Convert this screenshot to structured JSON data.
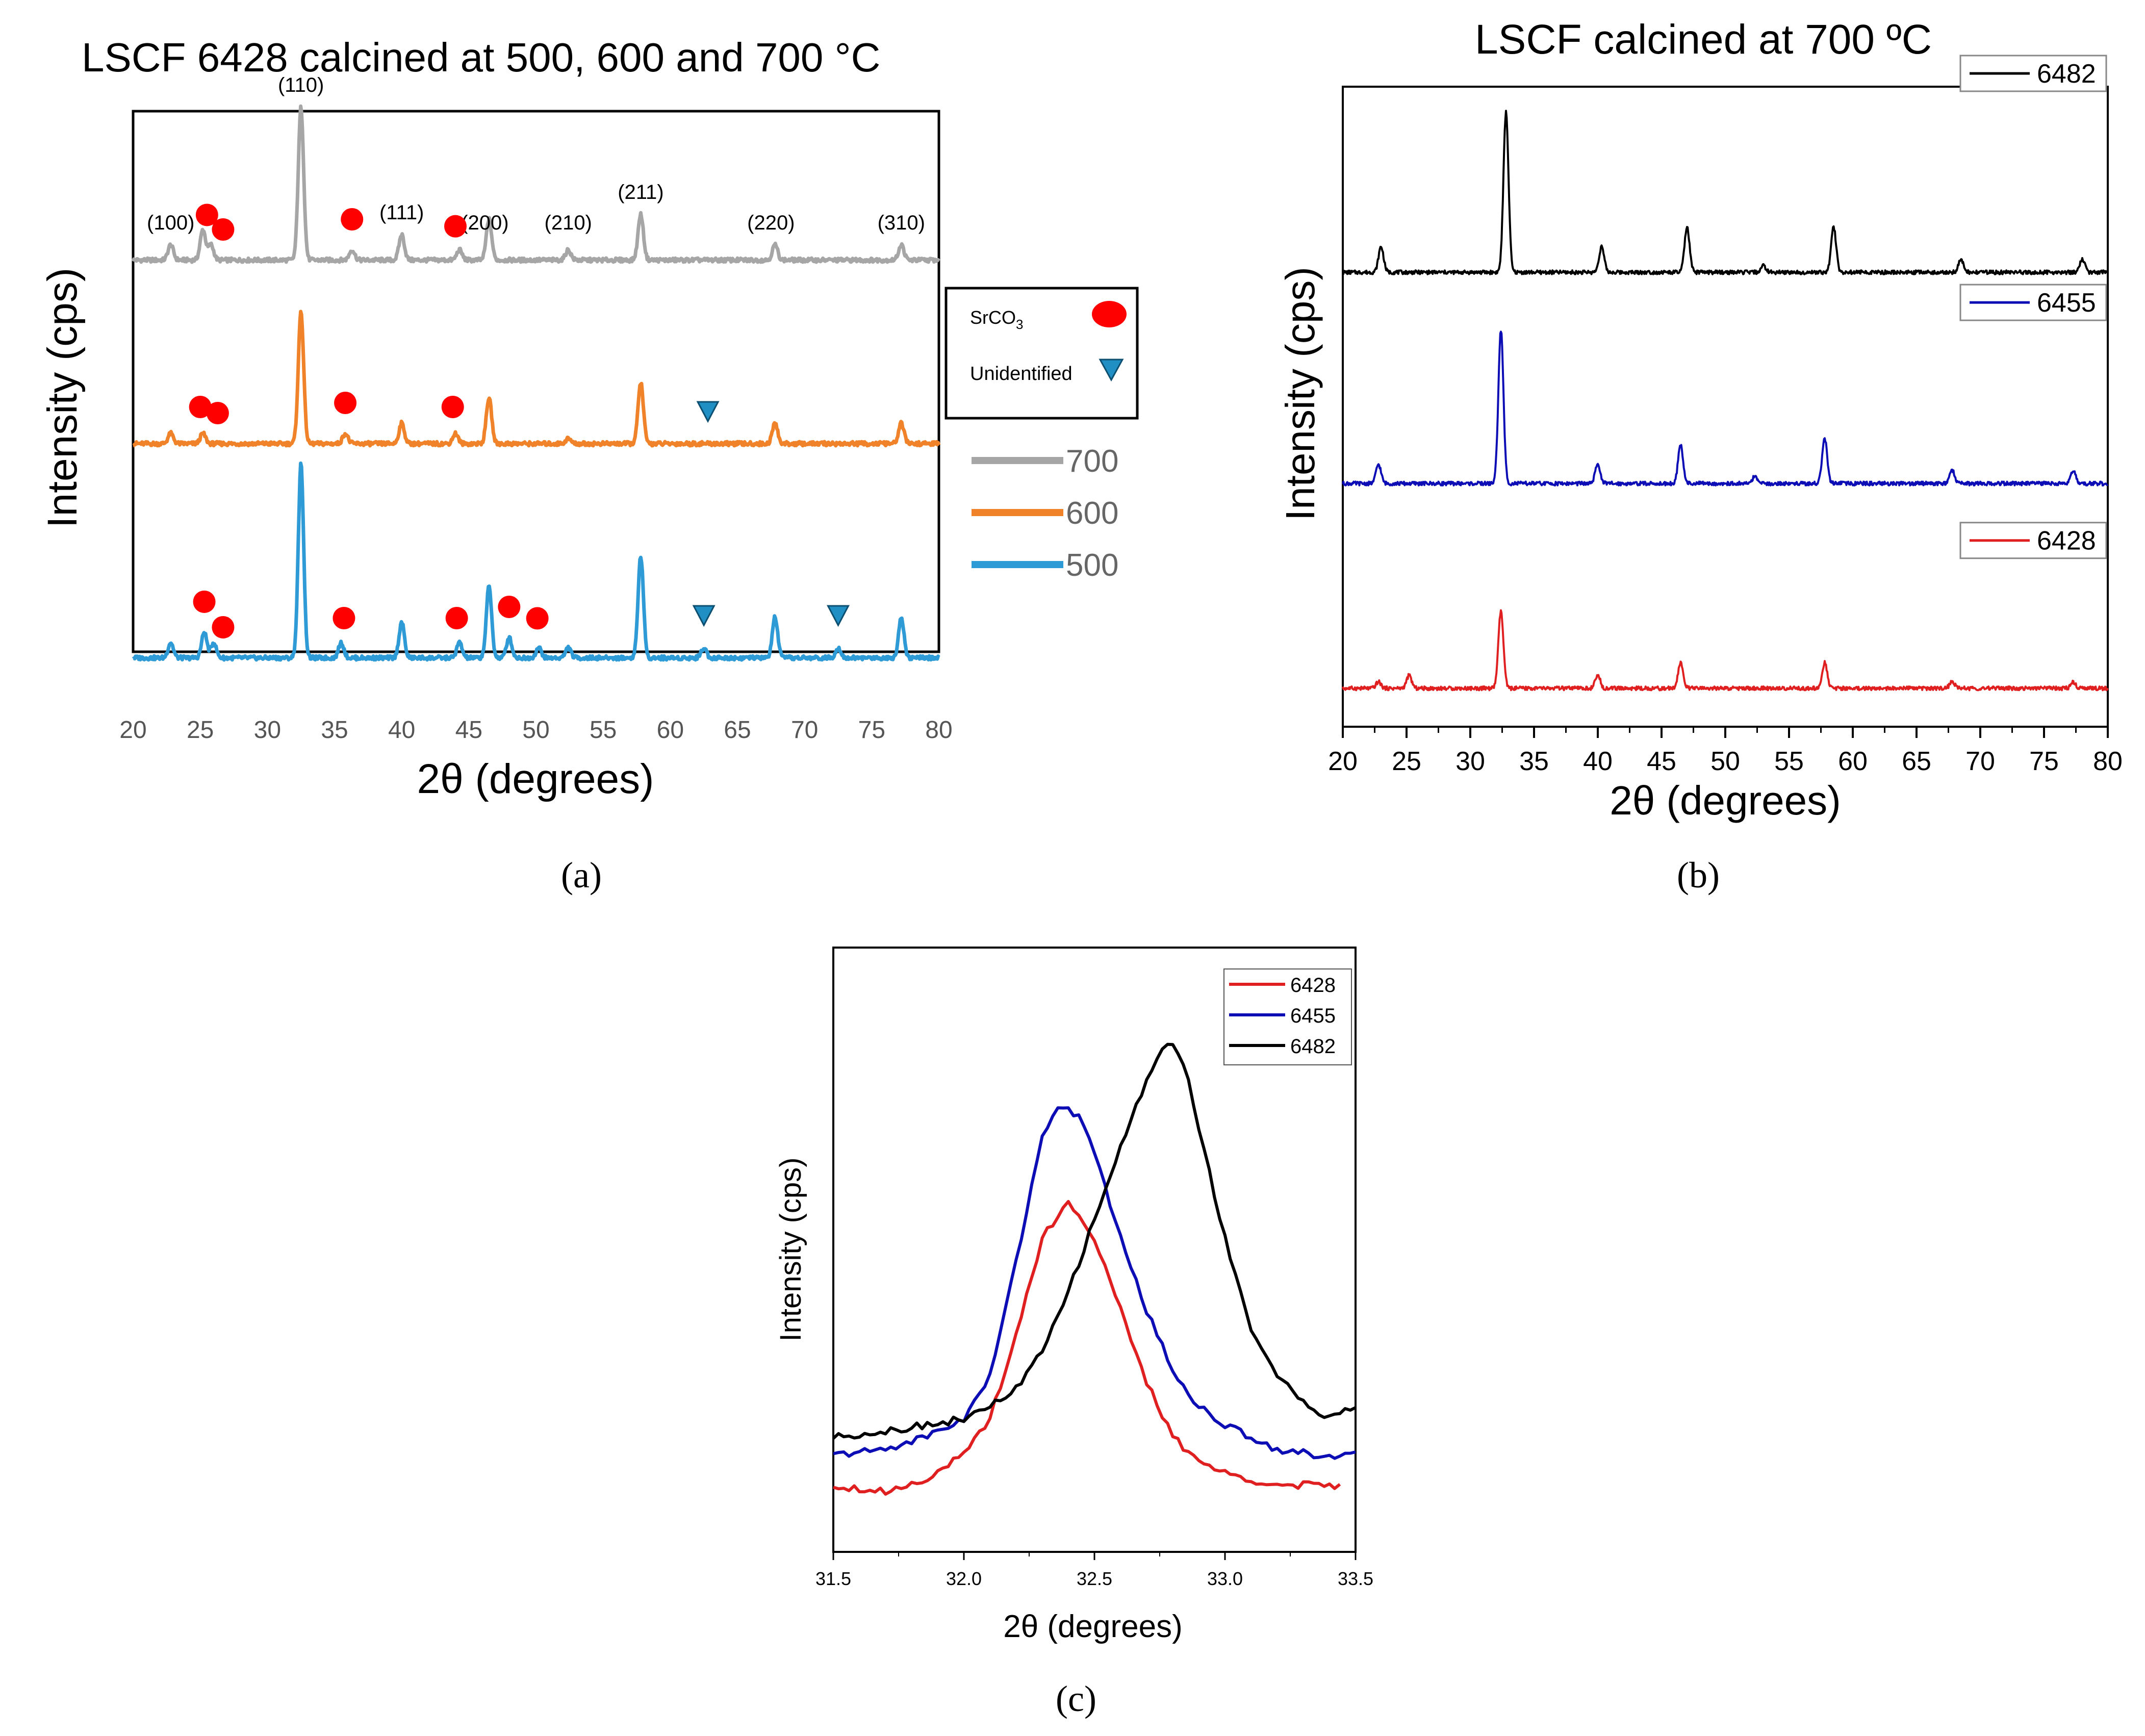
{
  "chart_data": [
    {
      "panel": "a",
      "type": "line",
      "title": "LSCF 6428 calcined at 500, 600 and 700 °C",
      "xlabel": "2θ (degrees)",
      "ylabel": "Intensity (cps)",
      "xlim": [
        20,
        80
      ],
      "xticks": [
        20,
        25,
        30,
        35,
        40,
        45,
        50,
        55,
        60,
        65,
        70,
        75,
        80
      ],
      "series": [
        {
          "name": "700",
          "color": "#a6a6a6",
          "baseline": 0.8,
          "peaks": [
            [
              22.8,
              0.03
            ],
            [
              25.2,
              0.06
            ],
            [
              25.8,
              0.03
            ],
            [
              32.5,
              0.3
            ],
            [
              36.3,
              0.02
            ],
            [
              40.0,
              0.05
            ],
            [
              44.3,
              0.02
            ],
            [
              46.5,
              0.08
            ],
            [
              52.4,
              0.02
            ],
            [
              57.8,
              0.09
            ],
            [
              67.8,
              0.03
            ],
            [
              77.2,
              0.03
            ]
          ]
        },
        {
          "name": "600",
          "color": "#f0822a",
          "baseline": 0.44,
          "peaks": [
            [
              22.8,
              0.02
            ],
            [
              25.2,
              0.02
            ],
            [
              32.5,
              0.26
            ],
            [
              35.8,
              0.02
            ],
            [
              40.0,
              0.04
            ],
            [
              44.0,
              0.02
            ],
            [
              46.5,
              0.09
            ],
            [
              52.4,
              0.01
            ],
            [
              57.8,
              0.12
            ],
            [
              67.8,
              0.04
            ],
            [
              77.2,
              0.04
            ]
          ]
        },
        {
          "name": "500",
          "color": "#2e9ad6",
          "baseline": 0.02,
          "peaks": [
            [
              22.8,
              0.03
            ],
            [
              25.3,
              0.05
            ],
            [
              26.0,
              0.03
            ],
            [
              32.5,
              0.38
            ],
            [
              35.5,
              0.03
            ],
            [
              40.0,
              0.07
            ],
            [
              44.3,
              0.03
            ],
            [
              46.5,
              0.14
            ],
            [
              48.0,
              0.04
            ],
            [
              50.2,
              0.02
            ],
            [
              52.4,
              0.02
            ],
            [
              57.8,
              0.2
            ],
            [
              62.5,
              0.02
            ],
            [
              67.8,
              0.08
            ],
            [
              72.5,
              0.02
            ],
            [
              77.2,
              0.08
            ]
          ]
        }
      ],
      "hkl_labels": [
        {
          "label": "(100)",
          "x": 22.8
        },
        {
          "label": "(110)",
          "x": 32.5
        },
        {
          "label": "(111)",
          "x": 40.0
        },
        {
          "label": "(200)",
          "x": 46.2
        },
        {
          "label": "(210)",
          "x": 52.4
        },
        {
          "label": "(211)",
          "x": 57.8
        },
        {
          "label": "(220)",
          "x": 67.5
        },
        {
          "label": "(310)",
          "x": 77.2
        }
      ],
      "markers": [
        {
          "type": "SrCO3",
          "x": 25.5,
          "series": "700"
        },
        {
          "type": "SrCO3",
          "x": 26.7,
          "series": "700"
        },
        {
          "type": "SrCO3",
          "x": 36.3,
          "series": "700"
        },
        {
          "type": "SrCO3",
          "x": 44.0,
          "series": "700"
        },
        {
          "type": "SrCO3",
          "x": 25.0,
          "series": "600"
        },
        {
          "type": "SrCO3",
          "x": 26.3,
          "series": "600"
        },
        {
          "type": "SrCO3",
          "x": 35.8,
          "series": "600"
        },
        {
          "type": "SrCO3",
          "x": 43.8,
          "series": "600"
        },
        {
          "type": "Unidentified",
          "x": 62.8,
          "series": "600"
        },
        {
          "type": "SrCO3",
          "x": 25.3,
          "series": "500"
        },
        {
          "type": "SrCO3",
          "x": 26.7,
          "series": "500"
        },
        {
          "type": "SrCO3",
          "x": 35.7,
          "series": "500"
        },
        {
          "type": "SrCO3",
          "x": 44.1,
          "series": "500"
        },
        {
          "type": "SrCO3",
          "x": 48.0,
          "series": "500"
        },
        {
          "type": "SrCO3",
          "x": 50.1,
          "series": "500"
        },
        {
          "type": "Unidentified",
          "x": 62.5,
          "series": "500"
        },
        {
          "type": "Unidentified",
          "x": 72.5,
          "series": "500"
        }
      ],
      "marker_legend": [
        "SrCO3",
        "Unidentified"
      ],
      "legend": [
        "700",
        "600",
        "500"
      ],
      "caption": "(a)"
    },
    {
      "panel": "b",
      "type": "line",
      "title": "LSCF calcined at 700 ºC",
      "xlabel": "2θ (degrees)",
      "ylabel": "Intensity (cps)",
      "xlim": [
        20,
        80
      ],
      "xticks": [
        20,
        25,
        30,
        35,
        40,
        45,
        50,
        55,
        60,
        65,
        70,
        75,
        80
      ],
      "series": [
        {
          "name": "6482",
          "color": "#000000",
          "baseline": 0.71,
          "peaks": [
            [
              23.0,
              0.04
            ],
            [
              32.8,
              0.25
            ],
            [
              40.3,
              0.04
            ],
            [
              47.0,
              0.07
            ],
            [
              53.0,
              0.01
            ],
            [
              58.5,
              0.07
            ],
            [
              68.5,
              0.02
            ],
            [
              78.0,
              0.02
            ]
          ]
        },
        {
          "name": "6455",
          "color": "#0d0db5",
          "baseline": 0.38,
          "peaks": [
            [
              22.8,
              0.03
            ],
            [
              32.4,
              0.24
            ],
            [
              40.0,
              0.03
            ],
            [
              46.5,
              0.06
            ],
            [
              52.3,
              0.01
            ],
            [
              57.8,
              0.07
            ],
            [
              67.8,
              0.02
            ],
            [
              77.3,
              0.02
            ]
          ]
        },
        {
          "name": "6428",
          "color": "#e02020",
          "baseline": 0.06,
          "peaks": [
            [
              22.8,
              0.01
            ],
            [
              25.2,
              0.02
            ],
            [
              32.4,
              0.12
            ],
            [
              40.0,
              0.02
            ],
            [
              46.5,
              0.04
            ],
            [
              57.8,
              0.04
            ],
            [
              67.8,
              0.01
            ],
            [
              77.3,
              0.01
            ]
          ]
        }
      ],
      "legend": [
        "6482",
        "6455",
        "6428"
      ],
      "caption": "(b)"
    },
    {
      "panel": "c",
      "type": "line",
      "xlabel": "2θ (degrees)",
      "ylabel": "Intensity (cps)",
      "xlim": [
        31.5,
        33.5
      ],
      "ylim": [
        0,
        1
      ],
      "xticks": [
        "31.5",
        "32.0",
        "32.5",
        "33.0",
        "33.5"
      ],
      "series": [
        {
          "name": "6428",
          "color": "#e02020",
          "x": [
            31.5,
            31.7,
            31.85,
            32.0,
            32.1,
            32.2,
            32.3,
            32.4,
            32.5,
            32.6,
            32.7,
            32.8,
            32.9,
            33.0,
            33.1,
            33.2,
            33.3,
            33.45
          ],
          "y": [
            0.11,
            0.1,
            0.12,
            0.16,
            0.22,
            0.36,
            0.52,
            0.58,
            0.52,
            0.4,
            0.28,
            0.19,
            0.15,
            0.13,
            0.12,
            0.11,
            0.11,
            0.11
          ]
        },
        {
          "name": "6455",
          "color": "#0d0db5",
          "x": [
            31.5,
            31.7,
            31.85,
            32.0,
            32.1,
            32.2,
            32.3,
            32.35,
            32.4,
            32.45,
            32.5,
            32.6,
            32.7,
            32.8,
            32.9,
            33.0,
            33.1,
            33.2,
            33.35,
            33.5
          ],
          "y": [
            0.16,
            0.17,
            0.19,
            0.22,
            0.29,
            0.48,
            0.69,
            0.73,
            0.73,
            0.72,
            0.66,
            0.52,
            0.4,
            0.3,
            0.24,
            0.21,
            0.19,
            0.17,
            0.16,
            0.16
          ]
        },
        {
          "name": "6482",
          "color": "#000000",
          "x": [
            31.5,
            31.7,
            31.85,
            32.0,
            32.1,
            32.2,
            32.3,
            32.4,
            32.5,
            32.6,
            32.7,
            32.75,
            32.8,
            32.85,
            32.9,
            33.0,
            33.1,
            33.2,
            33.3,
            33.4,
            33.5
          ],
          "y": [
            0.19,
            0.2,
            0.21,
            0.22,
            0.24,
            0.27,
            0.33,
            0.43,
            0.55,
            0.67,
            0.78,
            0.83,
            0.84,
            0.8,
            0.7,
            0.52,
            0.37,
            0.29,
            0.25,
            0.22,
            0.24
          ]
        }
      ],
      "legend": [
        "6428",
        "6455",
        "6482"
      ],
      "caption": "(c)"
    }
  ],
  "legend_labels": {
    "srco3_base": "SrCO",
    "srco3_sub": "3",
    "unidentified": "Unidentified"
  }
}
